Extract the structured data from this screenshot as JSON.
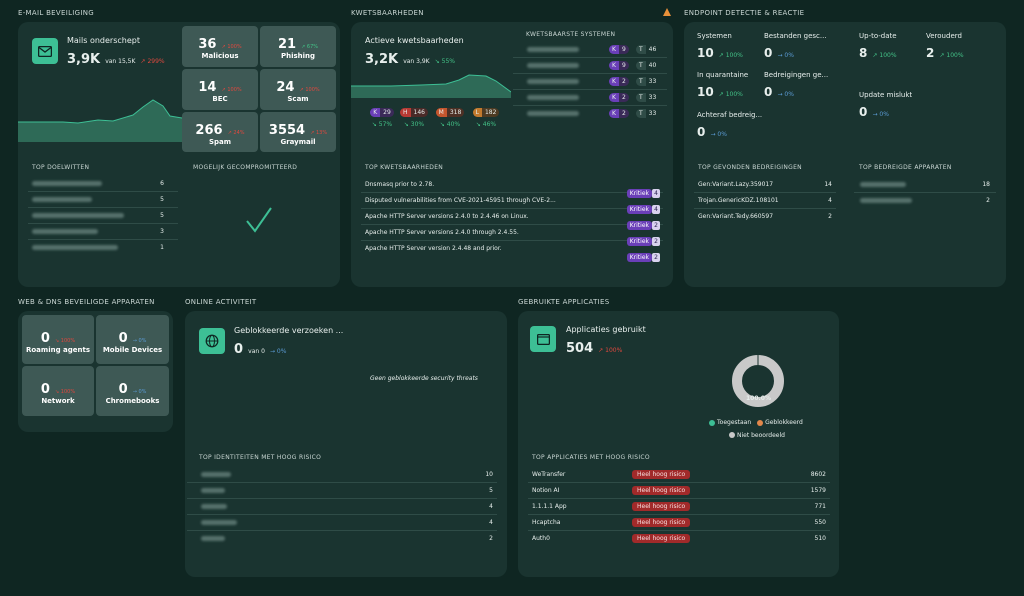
{
  "sections": {
    "email": "E-MAIL BEVEILIGING",
    "vuln": "KWETSBAARHEDEN",
    "endpoint": "ENDPOINT DETECTIE & REACTIE",
    "webdns": "WEB & DNS BEVEILIGDE APPARATEN",
    "online": "ONLINE ACTIVITEIT",
    "apps": "GEBRUIKTE APPLICATIES"
  },
  "email": {
    "title": "Mails onderschept",
    "value": "3,9K",
    "of": "van 15,5K",
    "change": "↗ 299%",
    "tiles": [
      {
        "num": "36",
        "chg": "↗ 100%",
        "label": "Malicious",
        "trend": "red"
      },
      {
        "num": "21",
        "chg": "↗ 67%",
        "label": "Phishing",
        "trend": "green"
      },
      {
        "num": "14",
        "chg": "↗ 100%",
        "label": "BEC",
        "trend": "red"
      },
      {
        "num": "24",
        "chg": "↗ 100%",
        "label": "Scam",
        "trend": "red"
      },
      {
        "num": "266",
        "chg": "↗ 24%",
        "label": "Spam",
        "trend": "red"
      },
      {
        "num": "3554",
        "chg": "↗ 13%",
        "label": "Graymail",
        "trend": "red"
      }
    ],
    "top_targets_title": "TOP DOELWITTEN",
    "top_targets_counts": [
      "6",
      "5",
      "5",
      "3",
      "1"
    ],
    "compromised_title": "MOGELIJK GECOMPROMITTEERD"
  },
  "vuln": {
    "title": "Actieve kwetsbaarheden",
    "value": "3,2K",
    "of": "van 3,9K",
    "change": "↘ 55%",
    "sev": [
      {
        "letter": "K",
        "count": "29",
        "chg": "↘ 57%",
        "color": "#6a3fb8"
      },
      {
        "letter": "H",
        "count": "146",
        "chg": "↘ 30%",
        "color": "#b73a34"
      },
      {
        "letter": "M",
        "count": "318",
        "chg": "↘ 40%",
        "color": "#c4562e"
      },
      {
        "letter": "L",
        "count": "182",
        "chg": "↘ 46%",
        "color": "#c27a2e"
      }
    ],
    "systems_title": "KWETSBAARSTE SYSTEMEN",
    "systems": [
      {
        "k": "9",
        "t": "46"
      },
      {
        "k": "9",
        "t": "40"
      },
      {
        "k": "2",
        "t": "33"
      },
      {
        "k": "2",
        "t": "33"
      },
      {
        "k": "2",
        "t": "33"
      }
    ],
    "top_title": "TOP KWETSBAARHEDEN",
    "top": [
      {
        "name": "Dnsmasq prior to 2.78.",
        "sev": "Kritiek",
        "count": "4"
      },
      {
        "name": "Disputed vulnerabilities from CVE-2021-45951 through CVE-2...",
        "sev": "Kritiek",
        "count": "4"
      },
      {
        "name": "Apache HTTP Server versions 2.4.0 to 2.4.46 on Linux.",
        "sev": "Kritiek",
        "count": "2"
      },
      {
        "name": "Apache HTTP Server versions 2.4.0 through 2.4.55.",
        "sev": "Kritiek",
        "count": "2"
      },
      {
        "name": "Apache HTTP Server version 2.4.48 and prior.",
        "sev": "Kritiek",
        "count": "2"
      }
    ]
  },
  "endpoint": {
    "stats": [
      {
        "label": "Systemen",
        "value": "10",
        "chg": "↗ 100%",
        "trend": "green"
      },
      {
        "label": "Bestanden gesc...",
        "value": "0",
        "chg": "→ 0%",
        "trend": "blue"
      },
      {
        "label": "Up-to-date",
        "value": "8",
        "chg": "↗ 100%",
        "trend": "green"
      },
      {
        "label": "Verouderd",
        "value": "2",
        "chg": "↗ 100%",
        "trend": "green"
      },
      {
        "label": "In quarantaine",
        "value": "10",
        "chg": "↗ 100%",
        "trend": "green"
      },
      {
        "label": "Bedreigingen ge...",
        "value": "0",
        "chg": "→ 0%",
        "trend": "blue"
      },
      {
        "label": "Update mislukt",
        "value": "0",
        "chg": "→ 0%",
        "trend": "blue"
      },
      {
        "label": "Achteraf bedreig...",
        "value": "0",
        "chg": "→ 0%",
        "trend": "blue"
      }
    ],
    "threats_title": "TOP GEVONDEN BEDREIGINGEN",
    "threats": [
      {
        "name": "Gen:Variant.Lazy.359017",
        "count": "14"
      },
      {
        "name": "Trojan.GenericKDZ.108101",
        "count": "4"
      },
      {
        "name": "Gen:Variant.Tedy.660597",
        "count": "2"
      }
    ],
    "devices_title": "TOP BEDREIGDE APPARATEN",
    "devices_counts": [
      "18",
      "2"
    ]
  },
  "webdns": {
    "tiles": [
      {
        "num": "0",
        "chg": "↘ 100%",
        "label": "Roaming agents",
        "trend": "red"
      },
      {
        "num": "0",
        "chg": "→ 0%",
        "label": "Mobile Devices",
        "trend": "blue"
      },
      {
        "num": "0",
        "chg": "↘ 100%",
        "label": "Network",
        "trend": "red"
      },
      {
        "num": "0",
        "chg": "→ 0%",
        "label": "Chromebooks",
        "trend": "blue"
      }
    ]
  },
  "online": {
    "title": "Geblokkeerde verzoeken ...",
    "value": "0",
    "of": "van 0",
    "change": "→ 0%",
    "empty": "Geen geblokkeerde security threats",
    "identities_title": "TOP IDENTITEITEN MET HOOG RISICO",
    "identities_counts": [
      "10",
      "5",
      "4",
      "4",
      "2"
    ]
  },
  "apps": {
    "title": "Applicaties gebruikt",
    "value": "504",
    "change": "↗ 100%",
    "donut_label": "100.0%",
    "legend": [
      {
        "label": "Toegestaan",
        "color": "#3dbf95"
      },
      {
        "label": "Geblokkeerd",
        "color": "#e3874a"
      },
      {
        "label": "Niet beoordeeld",
        "color": "#c9c9c9"
      }
    ],
    "top_title": "TOP APPLICATIES MET HOOG RISICO",
    "top": [
      {
        "name": "WeTransfer",
        "risk": "Heel hoog risico",
        "count": "8602"
      },
      {
        "name": "Notion AI",
        "risk": "Heel hoog risico",
        "count": "1579"
      },
      {
        "name": "1.1.1.1 App",
        "risk": "Heel hoog risico",
        "count": "771"
      },
      {
        "name": "Hcaptcha",
        "risk": "Heel hoog risico",
        "count": "550"
      },
      {
        "name": "Auth0",
        "risk": "Heel hoog risico",
        "count": "510"
      }
    ]
  },
  "colors": {
    "background": "#0f2622",
    "card": "#1a3430",
    "accent": "#3dbf95",
    "tile": "#3e5955",
    "critical": "#6a3fb8",
    "risk": "#a12a2a"
  }
}
